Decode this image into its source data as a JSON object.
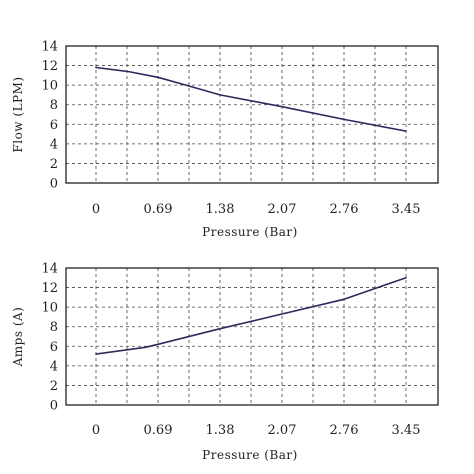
{
  "colors": {
    "line": "#2b2b5e",
    "frame": "#111111",
    "grid": "#444444"
  },
  "chart_data": [
    {
      "type": "line",
      "title": "",
      "xlabel": "Pressure (Bar)",
      "ylabel": "Flow (LPM)",
      "categories": [
        "0",
        "0.69",
        "1.38",
        "2.07",
        "2.76",
        "3.45"
      ],
      "ylim": [
        0,
        14
      ],
      "yticks": [
        "0",
        "2",
        "4",
        "6",
        "8",
        "10",
        "12",
        "14"
      ],
      "grid": true,
      "x": [
        0,
        0.35,
        0.69,
        1.0,
        1.38,
        2.07,
        2.76,
        3.45
      ],
      "values": [
        11.8,
        11.4,
        10.8,
        10.0,
        9.0,
        7.8,
        6.5,
        5.3
      ]
    },
    {
      "type": "line",
      "title": "",
      "xlabel": "Pressure (Bar)",
      "ylabel": "Amps (A)",
      "categories": [
        "0",
        "0.69",
        "1.38",
        "2.07",
        "2.76",
        "3.45"
      ],
      "ylim": [
        0,
        14
      ],
      "yticks": [
        "0",
        "2",
        "4",
        "6",
        "8",
        "10",
        "12",
        "14"
      ],
      "grid": true,
      "x": [
        0,
        0.55,
        0.69,
        1.38,
        2.07,
        2.76,
        3.1,
        3.45
      ],
      "values": [
        5.2,
        5.9,
        6.2,
        7.8,
        9.3,
        10.8,
        11.9,
        13.0
      ]
    }
  ]
}
